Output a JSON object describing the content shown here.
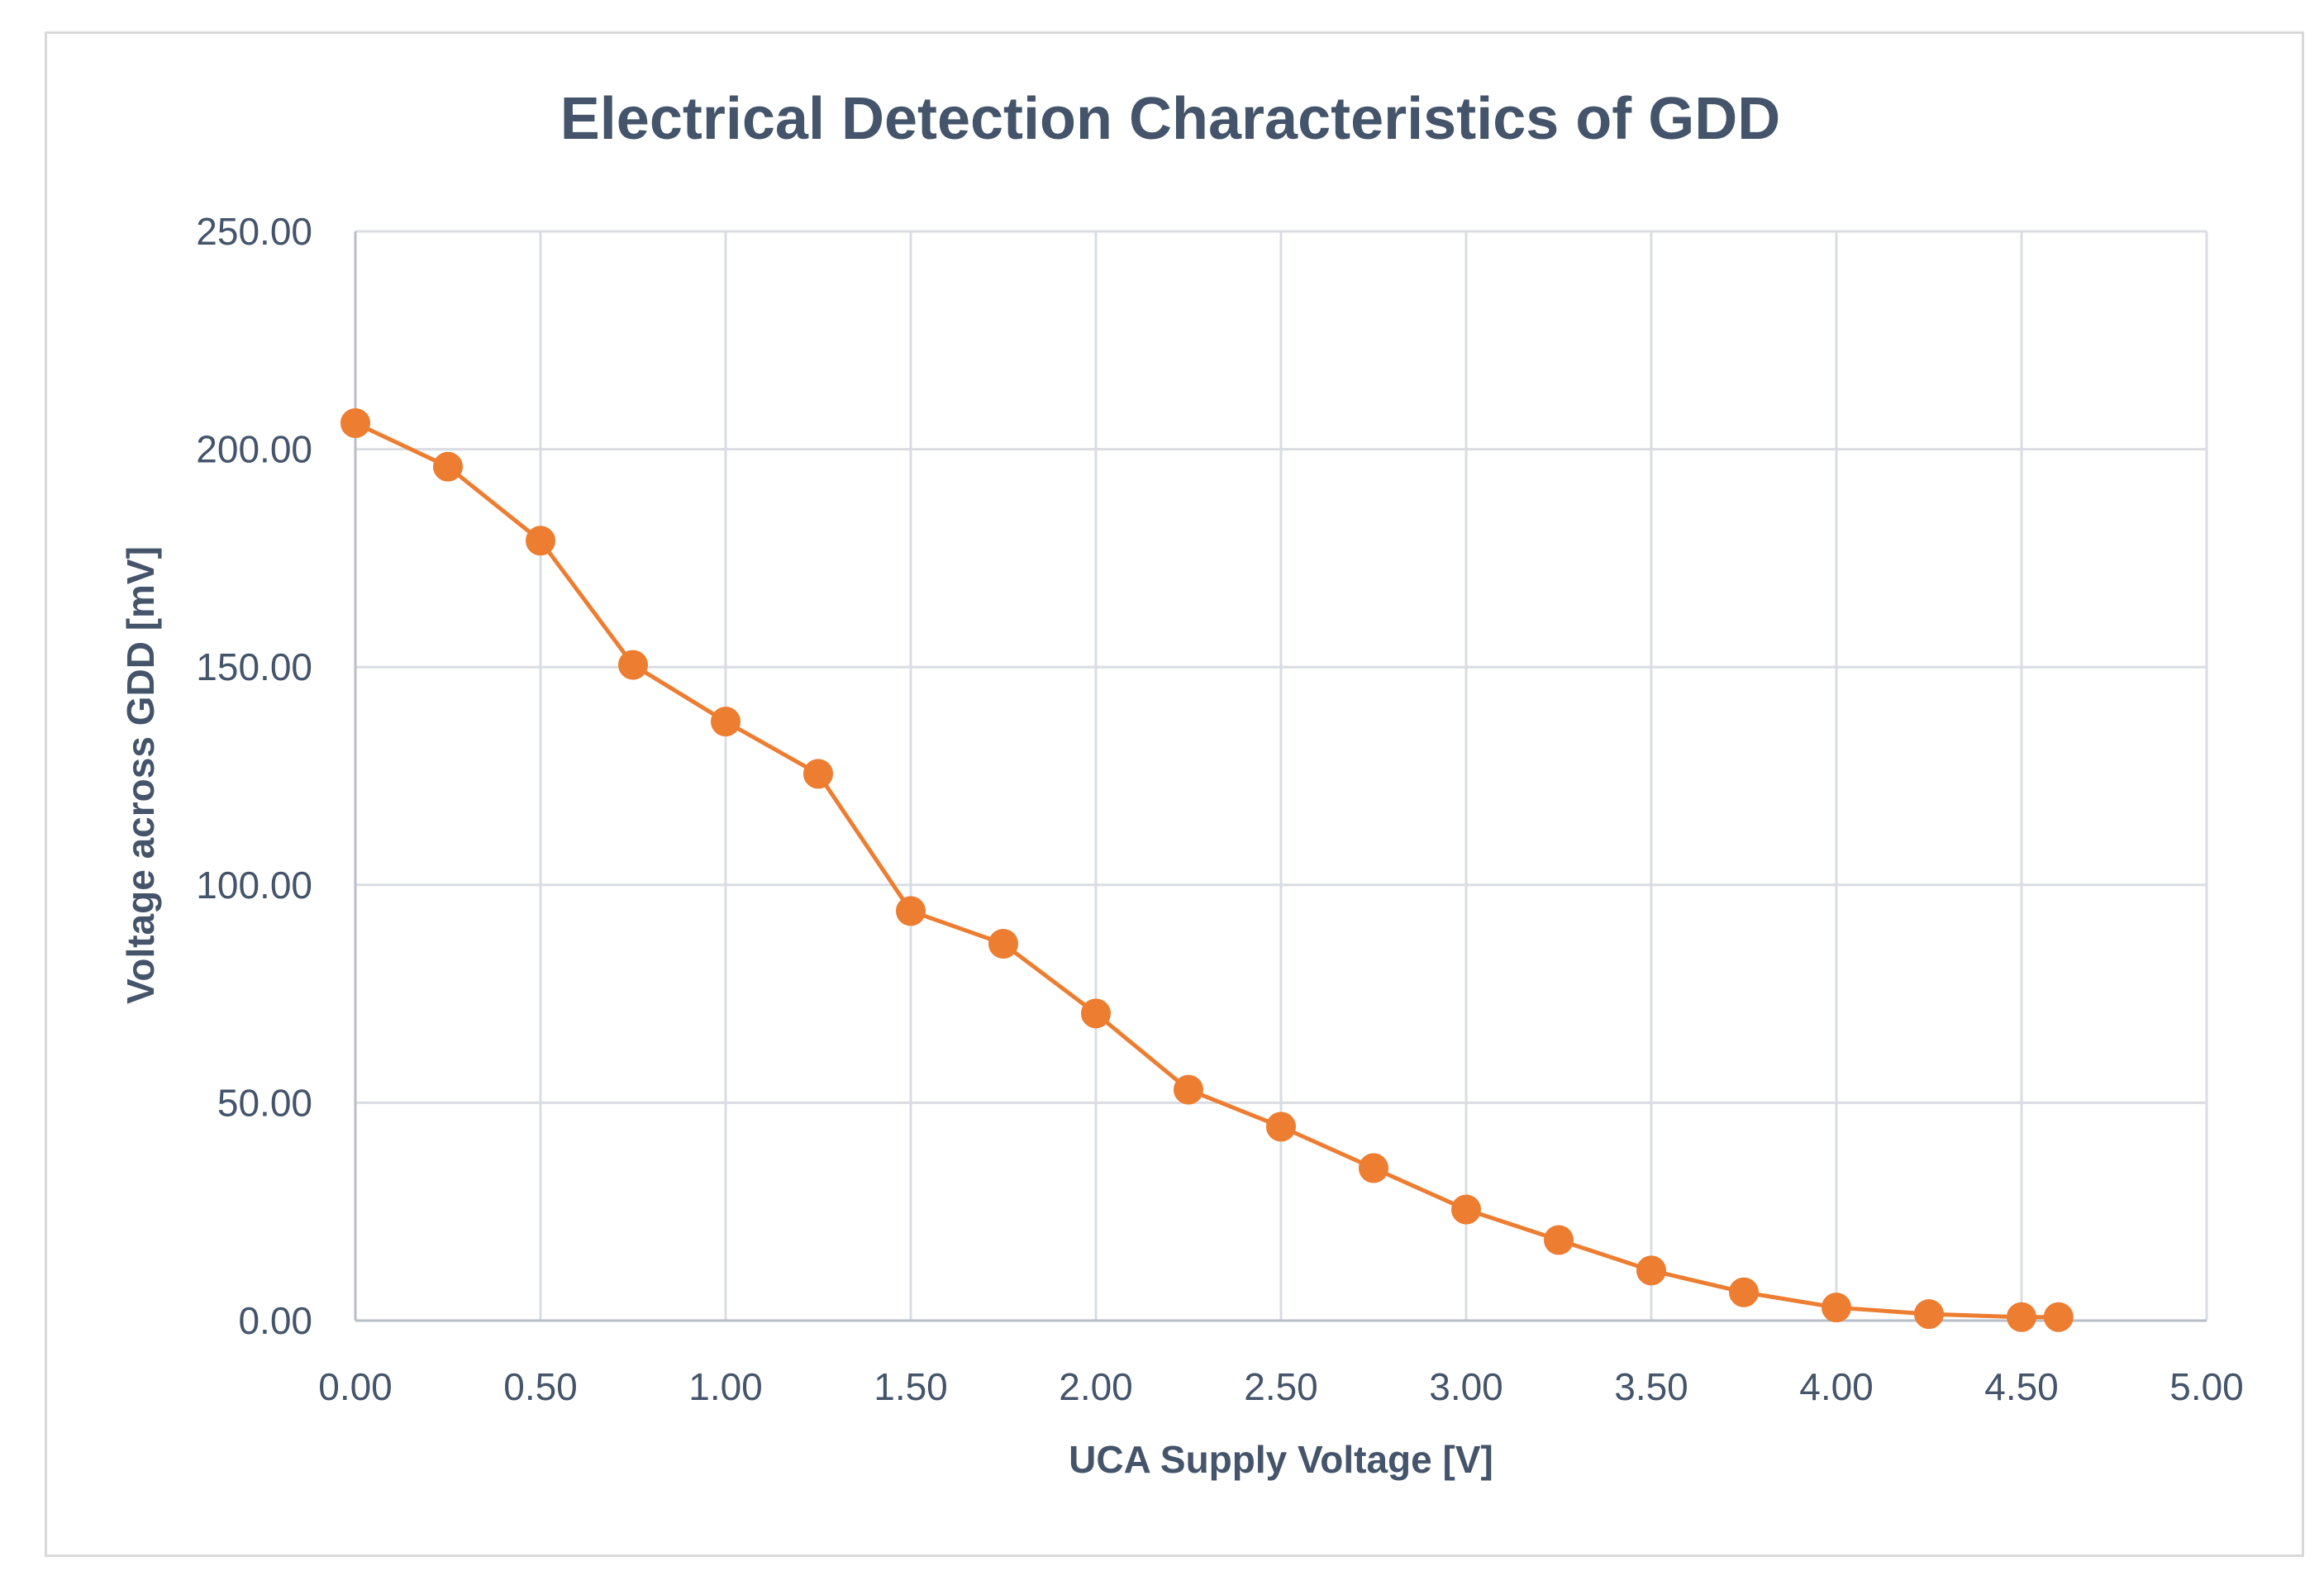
{
  "chart_data": {
    "type": "line",
    "title": "Electrical Detection Characteristics of GDD",
    "xlabel": "UCA Supply Voltage [V]",
    "ylabel": "Voltage across GDD [mV]",
    "xlim": [
      0,
      5
    ],
    "ylim": [
      0,
      250
    ],
    "x_ticks": [
      "0.00",
      "0.50",
      "1.00",
      "1.50",
      "2.00",
      "2.50",
      "3.00",
      "3.50",
      "4.00",
      "4.50",
      "5.00"
    ],
    "x_tick_values": [
      0,
      0.5,
      1,
      1.5,
      2,
      2.5,
      3,
      3.5,
      4,
      4.5,
      5
    ],
    "y_ticks": [
      "0.00",
      "50.00",
      "100.00",
      "150.00",
      "200.00",
      "250.00"
    ],
    "y_tick_values": [
      0,
      50,
      100,
      150,
      200,
      250
    ],
    "grid": true,
    "legend": "none",
    "series": [
      {
        "name": "Voltage across GDD",
        "color": "#ed7d31",
        "x": [
          0,
          0.25,
          0.5,
          0.75,
          1.0,
          1.25,
          1.5,
          1.75,
          2.0,
          2.25,
          2.5,
          2.75,
          3.0,
          3.25,
          3.5,
          3.75,
          4.0,
          4.25,
          4.5,
          4.6
        ],
        "y": [
          206,
          196,
          179,
          150.5,
          137.5,
          125.5,
          94,
          86.5,
          70.5,
          53,
          44.5,
          35,
          25.5,
          18.5,
          11.5,
          6.5,
          3,
          1.5,
          0.8,
          0.8
        ]
      }
    ]
  }
}
